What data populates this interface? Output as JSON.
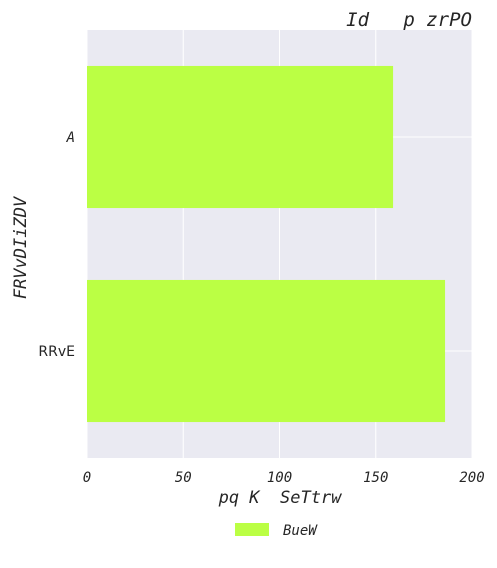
{
  "chart_data": {
    "type": "bar",
    "orientation": "horizontal",
    "title": "Id   p zrPO",
    "xlabel": "pq K  SeTtrw",
    "ylabel": "FRVvDIiZDV",
    "categories": [
      "A",
      "RRvE"
    ],
    "series": [
      {
        "name": "BueW",
        "values": [
          159,
          186
        ],
        "color": "#bbff44"
      }
    ],
    "xlim": [
      0,
      200
    ],
    "xticks": [
      0,
      50,
      100,
      150,
      200
    ],
    "grid": true,
    "legend_position": "bottom-center",
    "background": "#eaeaf2"
  }
}
